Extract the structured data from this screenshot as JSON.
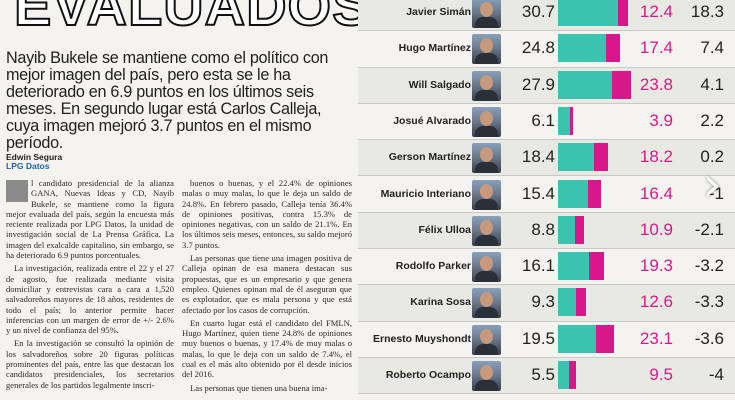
{
  "headline": "EVALUADOS",
  "lede": "Nayib Bukele se mantiene como el político con mejor imagen del país, pero esta se le ha deteriorado en 6.9 puntos en los últimos seis meses. En segundo lugar está Carlos Calleja, cuya imagen mejoró 3.7 puntos en el mismo período.",
  "byline": {
    "author": "Edwin Segura",
    "unit": "LPG Datos"
  },
  "col1": [
    "l candidato presidencial de la alianza GANA, Nuevas Ideas y CD, Nayib Bukele, se mantiene como la figura mejor evaluada del país, según la encuesta más reciente realizada por LPG Datos, la unidad de investigación social de La Prensa Gráfica. La imagen del exalcalde capitalino, sin embargo, se ha deteriorado 6.9 puntos porcentuales.",
    "La investigación, realizada entre el 22 y el 27 de agosto, fue realizada mediante visita domiciliar y entrevistas cara a cara a 1,520 salvadoreños mayores de 18 años, residentes de todo el país; lo anterior permite hacer inferencias con un margen de error de +/- 2.6% y un nivel de confianza del 95%.",
    "En la investigación se consultó la opinión de los salvadoreños sobre 20 figuras políticas prominentes del país, entre las que destacan los candidatos presidenciales, los secretarios generales de los partidos legalmente inscri-"
  ],
  "col2": [
    "buenos o buenas, y el 22.4% de opiniones malas o muy malas, lo que le deja un saldo de 24.8%. En febrero pasado, Calleja tenía 36.4% de opiniones positivas, contra 15.3% de opiniones negativas, con un saldo de 21.1%. En los últimos seis meses, entonces, su saldo mejoró 3.7 puntos.",
    "Las personas que tiene una imagen positiva de Calleja opinan de esa manera destacan sus propuestas, que es un empresario y que genera empleo. Quienes opinan mal de él aseguran que es explotador, que es mala persona y que está afectado por los casos de corrupción.",
    "En cuarto lugar está el candidato del FMLN, Hugo Martínez, quien tiene 24.8% de opiniones muy buenos o buenas, y 17.4% de muy malas o malas, lo que le deja con un saldo de 7.4%, el cual es el más alto obtenido por él desde inicios del 2016.",
    "Las personas que tienen una buena ima-"
  ],
  "table": {
    "colors": {
      "positive": "#3cc3b0",
      "negative": "#d8188a"
    },
    "rows": [
      {
        "name": "Javier Simán",
        "positive": "30.7",
        "negative": "12.4",
        "balance": "18.3",
        "pos": 30.7,
        "neg": 12.4
      },
      {
        "name": "Hugo Martínez",
        "positive": "24.8",
        "negative": "17.4",
        "balance": "7.4",
        "pos": 24.8,
        "neg": 17.4
      },
      {
        "name": "Will Salgado",
        "positive": "27.9",
        "negative": "23.8",
        "balance": "4.1",
        "pos": 27.9,
        "neg": 23.8
      },
      {
        "name": "Josué Alvarado",
        "positive": "6.1",
        "negative": "3.9",
        "balance": "2.2",
        "pos": 6.1,
        "neg": 3.9
      },
      {
        "name": "Gerson Martínez",
        "positive": "18.4",
        "negative": "18.2",
        "balance": "0.2",
        "pos": 18.4,
        "neg": 18.2
      },
      {
        "name": "Mauricio Interiano",
        "positive": "15.4",
        "negative": "16.4",
        "balance": "-1",
        "pos": 15.4,
        "neg": 16.4
      },
      {
        "name": "Félix Ulloa",
        "positive": "8.8",
        "negative": "10.9",
        "balance": "-2.1",
        "pos": 8.8,
        "neg": 10.9
      },
      {
        "name": "Rodolfo Parker",
        "positive": "16.1",
        "negative": "19.3",
        "balance": "-3.2",
        "pos": 16.1,
        "neg": 19.3
      },
      {
        "name": "Karina Sosa",
        "positive": "9.3",
        "negative": "12.6",
        "balance": "-3.3",
        "pos": 9.3,
        "neg": 12.6
      },
      {
        "name": "Ernesto Muyshondt",
        "positive": "19.5",
        "negative": "23.1",
        "balance": "-3.6",
        "pos": 19.5,
        "neg": 23.1
      },
      {
        "name": "Roberto Ocampo",
        "positive": "5.5",
        "negative": "9.5",
        "balance": "-4",
        "pos": 5.5,
        "neg": 9.5
      }
    ]
  }
}
